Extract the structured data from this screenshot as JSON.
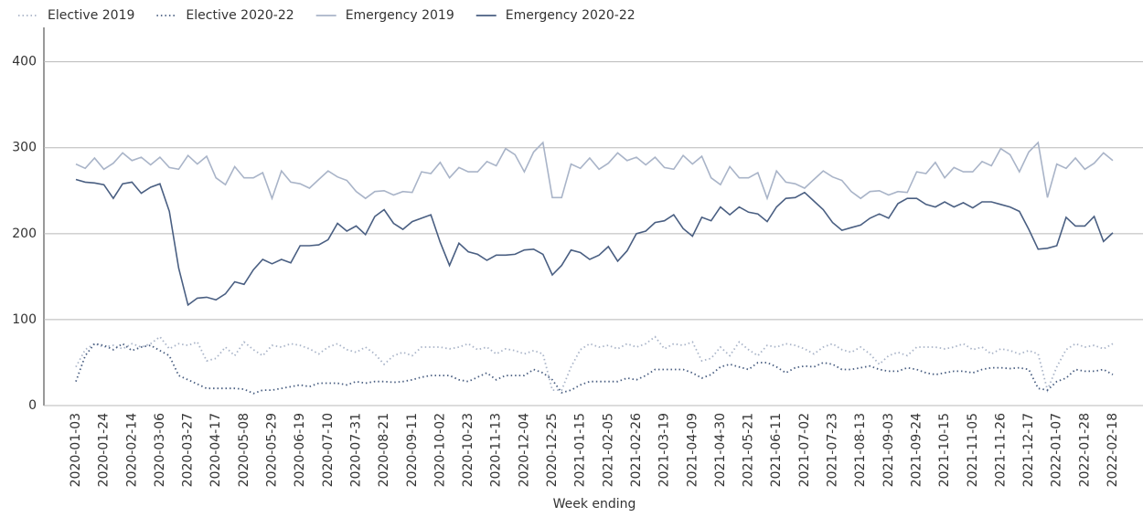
{
  "chart_data": {
    "type": "line",
    "xlabel": "Week ending",
    "categories": [
      "2020-01-03",
      null,
      null,
      "2020-01-24",
      null,
      null,
      "2020-02-14",
      null,
      null,
      "2020-03-06",
      null,
      null,
      "2020-03-27",
      null,
      null,
      "2020-04-17",
      null,
      null,
      "2020-05-08",
      null,
      null,
      "2020-05-29",
      null,
      null,
      "2020-06-19",
      null,
      null,
      "2020-07-10",
      null,
      null,
      "2020-07-31",
      null,
      null,
      "2020-08-21",
      null,
      null,
      "2020-09-11",
      null,
      null,
      "2020-10-02",
      null,
      null,
      "2020-10-23",
      null,
      null,
      "2020-11-13",
      null,
      null,
      "2020-12-04",
      null,
      null,
      "2020-12-25",
      null,
      null,
      "2021-01-15",
      null,
      null,
      "2021-02-05",
      null,
      null,
      "2021-02-26",
      null,
      null,
      "2021-03-19",
      null,
      null,
      "2021-04-09",
      null,
      null,
      "2021-04-30",
      null,
      null,
      "2021-05-21",
      null,
      null,
      "2021-06-11",
      null,
      null,
      "2021-07-02",
      null,
      null,
      "2021-07-23",
      null,
      null,
      "2021-08-13",
      null,
      null,
      "2021-09-03",
      null,
      null,
      "2021-09-24",
      null,
      null,
      "2021-10-15",
      null,
      null,
      "2021-11-05",
      null,
      null,
      "2021-11-26",
      null,
      null,
      "2021-12-17",
      null,
      null,
      "2022-01-07",
      null,
      null,
      "2022-01-28",
      null,
      null,
      "2022-02-18"
    ],
    "series": [
      {
        "name": "Elective 2019",
        "color": "#a9b4c8",
        "line_style": "dotted",
        "values": [
          45,
          65,
          72,
          68,
          70,
          66,
          72,
          68,
          72,
          80,
          66,
          72,
          70,
          74,
          52,
          55,
          68,
          58,
          74,
          65,
          58,
          70,
          68,
          72,
          70,
          66,
          60,
          68,
          72,
          65,
          62,
          68,
          60,
          48,
          58,
          62,
          58,
          68,
          68,
          68,
          66,
          68,
          72,
          65,
          68,
          60,
          66,
          64,
          60,
          64,
          60,
          18,
          18,
          45,
          65,
          72,
          68,
          70,
          66,
          72,
          68,
          72,
          80,
          66,
          72,
          70,
          74,
          52,
          55,
          68,
          58,
          74,
          65,
          58,
          70,
          68,
          72,
          70,
          66,
          60,
          68,
          72,
          65,
          62,
          68,
          60,
          48,
          58,
          62,
          58,
          68,
          68,
          68,
          66,
          68,
          72,
          65,
          68,
          60,
          66,
          64,
          60,
          64,
          60,
          18,
          45,
          65,
          72,
          68,
          70,
          66,
          72
        ]
      },
      {
        "name": "Elective 2020-22",
        "color": "#4a5f82",
        "line_style": "dotted",
        "values": [
          28,
          58,
          72,
          70,
          65,
          72,
          64,
          68,
          70,
          64,
          58,
          35,
          30,
          25,
          20,
          20,
          20,
          20,
          19,
          14,
          18,
          18,
          20,
          22,
          24,
          22,
          26,
          26,
          26,
          24,
          28,
          26,
          28,
          28,
          27,
          28,
          30,
          33,
          35,
          35,
          35,
          30,
          28,
          33,
          38,
          30,
          35,
          35,
          35,
          42,
          38,
          30,
          15,
          18,
          24,
          28,
          28,
          28,
          28,
          32,
          30,
          35,
          42,
          42,
          42,
          42,
          38,
          32,
          36,
          45,
          48,
          45,
          42,
          50,
          50,
          45,
          38,
          44,
          46,
          45,
          50,
          48,
          42,
          42,
          44,
          46,
          42,
          40,
          40,
          44,
          42,
          38,
          36,
          38,
          40,
          40,
          38,
          42,
          44,
          44,
          43,
          44,
          42,
          20,
          18,
          28,
          32,
          42,
          40,
          40,
          42,
          36
        ]
      },
      {
        "name": "Emergency 2019",
        "color": "#a9b4c8",
        "line_style": "solid",
        "values": [
          281,
          276,
          288,
          275,
          282,
          294,
          285,
          289,
          280,
          289,
          277,
          275,
          291,
          281,
          290,
          265,
          257,
          278,
          265,
          265,
          271,
          241,
          273,
          260,
          258,
          253,
          263,
          273,
          266,
          262,
          249,
          241,
          249,
          250,
          245,
          249,
          248,
          272,
          270,
          283,
          265,
          277,
          272,
          272,
          284,
          279,
          299,
          292,
          272,
          295,
          306,
          242,
          242,
          281,
          276,
          288,
          275,
          282,
          294,
          285,
          289,
          280,
          289,
          277,
          275,
          291,
          281,
          290,
          265,
          257,
          278,
          265,
          265,
          271,
          241,
          273,
          260,
          258,
          253,
          263,
          273,
          266,
          262,
          249,
          241,
          249,
          250,
          245,
          249,
          248,
          272,
          270,
          283,
          265,
          277,
          272,
          272,
          284,
          279,
          299,
          292,
          272,
          295,
          306,
          242,
          281,
          276,
          288,
          275,
          282,
          294,
          285
        ]
      },
      {
        "name": "Emergency 2020-22",
        "color": "#4a5f82",
        "line_style": "solid",
        "values": [
          263,
          260,
          259,
          257,
          241,
          258,
          260,
          247,
          254,
          258,
          226,
          160,
          117,
          125,
          126,
          123,
          130,
          144,
          141,
          158,
          170,
          165,
          170,
          166,
          186,
          186,
          187,
          193,
          212,
          203,
          209,
          199,
          220,
          228,
          212,
          205,
          214,
          218,
          222,
          190,
          163,
          189,
          179,
          176,
          169,
          175,
          175,
          176,
          181,
          182,
          176,
          152,
          163,
          181,
          178,
          170,
          175,
          185,
          168,
          180,
          200,
          203,
          213,
          215,
          222,
          206,
          197,
          219,
          215,
          231,
          222,
          231,
          225,
          223,
          214,
          231,
          241,
          242,
          248,
          238,
          228,
          213,
          204,
          207,
          210,
          218,
          223,
          218,
          235,
          241,
          241,
          234,
          231,
          237,
          231,
          236,
          230,
          237,
          237,
          234,
          231,
          226,
          205,
          182,
          183,
          186,
          219,
          209,
          209,
          220,
          191,
          201
        ]
      }
    ],
    "ylim": [
      0,
      440
    ],
    "yticks": [
      0,
      100,
      200,
      300,
      400
    ],
    "grid": true
  }
}
